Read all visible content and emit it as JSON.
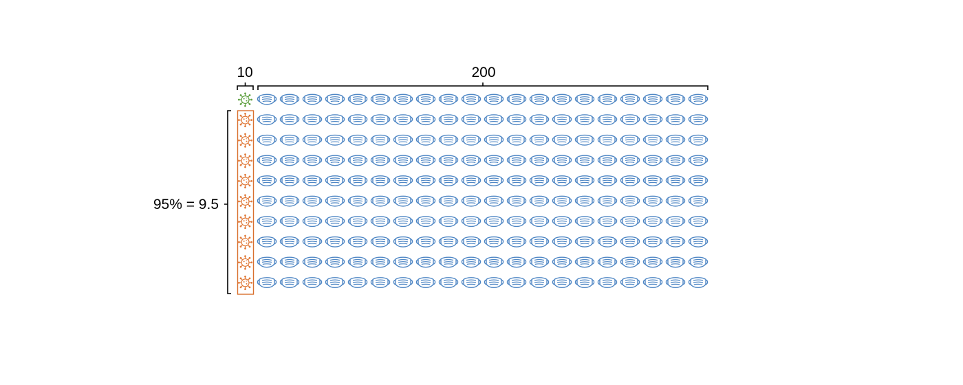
{
  "labels": {
    "infected_count": "10",
    "mask_count": "200",
    "percent_label": "95% = 9.5"
  },
  "grid": {
    "rows": 10,
    "mask_columns": 20,
    "virus_columns": 1,
    "highlighted_virus_rows": 9
  },
  "icons": {
    "virus": "virus-icon",
    "mask": "face-mask-icon"
  },
  "colors": {
    "virus_top": "#5fa040",
    "virus_highlighted": "#e07a3a",
    "highlight_box": "#d9702e",
    "mask": "#4e86c4",
    "bracket": "#000000"
  }
}
